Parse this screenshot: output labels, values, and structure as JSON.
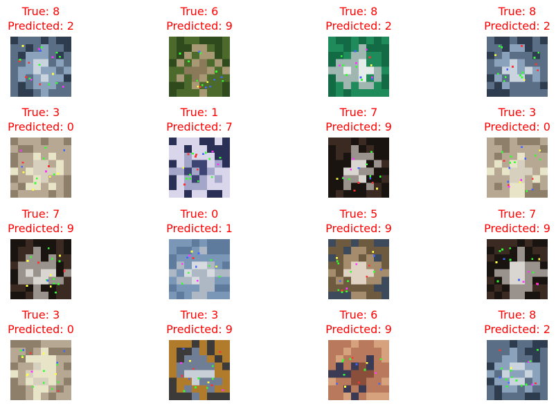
{
  "colors": {
    "title": "#ff0000",
    "background": "#ffffff",
    "keypoint_green": "#33ff33",
    "keypoint_yellow": "#ffff44",
    "keypoint_red": "#ff3333",
    "keypoint_blue": "#4466ff",
    "keypoint_magenta": "#ff33ff"
  },
  "grid": {
    "rows": 4,
    "cols": 4,
    "cells": [
      {
        "true_label": "True: 8",
        "predicted_label": "Predicted: 2",
        "subject": "ship",
        "palette": [
          "#5a6f86",
          "#c9d4de",
          "#2d3c4f",
          "#8aa2bb"
        ]
      },
      {
        "true_label": "True: 6",
        "predicted_label": "Predicted: 9",
        "subject": "frog",
        "palette": [
          "#4c6a2c",
          "#8a7a5a",
          "#2f4a1c",
          "#a99874"
        ]
      },
      {
        "true_label": "True: 8",
        "predicted_label": "Predicted: 2",
        "subject": "ship",
        "palette": [
          "#1f8a5a",
          "#e6ecea",
          "#136b45",
          "#9fb7b0"
        ]
      },
      {
        "true_label": "True: 8",
        "predicted_label": "Predicted: 2",
        "subject": "ship",
        "palette": [
          "#5a6f86",
          "#c9d4de",
          "#2d3c4f",
          "#8aa2bb"
        ]
      },
      {
        "true_label": "True: 3",
        "predicted_label": "Predicted: 0",
        "subject": "cat",
        "palette": [
          "#b7a893",
          "#d8d0bf",
          "#8e7f6b",
          "#e8e4c8"
        ]
      },
      {
        "true_label": "True: 1",
        "predicted_label": "Predicted: 7",
        "subject": "car",
        "palette": [
          "#d9d6ec",
          "#3d4474",
          "#2a2f55",
          "#a3a6c8"
        ]
      },
      {
        "true_label": "True: 7",
        "predicted_label": "Predicted: 9",
        "subject": "horse",
        "palette": [
          "#1a1410",
          "#d9d6d2",
          "#3a2a22",
          "#9a928c"
        ]
      },
      {
        "true_label": "True: 3",
        "predicted_label": "Predicted: 0",
        "subject": "cat",
        "palette": [
          "#b7a893",
          "#d8d0bf",
          "#8e7f6b",
          "#e8e4c8"
        ]
      },
      {
        "true_label": "True: 7",
        "predicted_label": "Predicted: 9",
        "subject": "horse",
        "palette": [
          "#1a1410",
          "#d9d6d2",
          "#3a2a22",
          "#9a928c"
        ]
      },
      {
        "true_label": "True: 0",
        "predicted_label": "Predicted: 1",
        "subject": "airplane",
        "palette": [
          "#7b97b8",
          "#d7dbe0",
          "#5e7a9c",
          "#aeb8c4"
        ]
      },
      {
        "true_label": "True: 5",
        "predicted_label": "Predicted: 9",
        "subject": "dog",
        "palette": [
          "#6e5a3e",
          "#e1d3c3",
          "#3c4a5c",
          "#a48c6c"
        ]
      },
      {
        "true_label": "True: 7",
        "predicted_label": "Predicted: 9",
        "subject": "horse",
        "palette": [
          "#1a1410",
          "#d9d6d2",
          "#3a2a22",
          "#9a928c"
        ]
      },
      {
        "true_label": "True: 3",
        "predicted_label": "Predicted: 0",
        "subject": "cat",
        "palette": [
          "#b7a893",
          "#d8d0bf",
          "#8e7f6b",
          "#e8e4c8"
        ]
      },
      {
        "true_label": "True: 3",
        "predicted_label": "Predicted: 9",
        "subject": "cat",
        "palette": [
          "#b07b2a",
          "#c9cfd6",
          "#3d3a3a",
          "#6f7e95"
        ]
      },
      {
        "true_label": "True: 6",
        "predicted_label": "Predicted: 9",
        "subject": "frog",
        "palette": [
          "#b9795d",
          "#8a4f3b",
          "#d6a27e",
          "#3a3a55"
        ]
      },
      {
        "true_label": "True: 8",
        "predicted_label": "Predicted: 2",
        "subject": "ship",
        "palette": [
          "#5a6f86",
          "#c9d4de",
          "#2d3c4f",
          "#8aa2bb"
        ]
      }
    ]
  }
}
